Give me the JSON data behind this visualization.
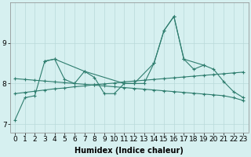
{
  "series": {
    "s1_x": [
      0,
      1,
      2,
      3,
      4,
      5,
      6,
      7,
      8,
      9,
      10,
      11,
      12,
      13,
      14,
      15,
      16,
      17,
      18,
      19,
      20,
      21,
      22,
      23
    ],
    "s1_y": [
      7.1,
      7.65,
      7.7,
      8.55,
      8.6,
      8.1,
      8.0,
      8.3,
      8.15,
      7.75,
      7.75,
      8.0,
      8.0,
      8.0,
      8.5,
      9.3,
      9.65,
      8.6,
      8.35,
      8.45,
      8.35,
      8.05,
      7.8,
      7.65
    ],
    "s2_x": [
      3,
      4,
      7,
      11,
      12,
      14,
      15,
      16,
      17,
      19
    ],
    "s2_y": [
      8.55,
      8.6,
      8.3,
      8.0,
      8.0,
      8.5,
      9.3,
      9.65,
      8.6,
      8.45
    ],
    "s3_x": [
      0,
      1,
      2,
      3,
      4,
      5,
      6,
      7,
      8,
      9,
      10,
      11,
      12,
      13,
      14,
      15,
      16,
      17,
      18,
      19,
      20,
      21,
      22,
      23
    ],
    "s3_y": [
      7.75,
      7.78,
      7.81,
      7.84,
      7.87,
      7.89,
      7.92,
      7.94,
      7.97,
      7.99,
      8.01,
      8.04,
      8.06,
      8.08,
      8.1,
      8.12,
      8.14,
      8.16,
      8.18,
      8.2,
      8.22,
      8.24,
      8.26,
      8.28
    ],
    "s4_x": [
      0,
      1,
      2,
      3,
      4,
      5,
      6,
      7,
      8,
      9,
      10,
      11,
      12,
      13,
      14,
      15,
      16,
      17,
      18,
      19,
      20,
      21,
      22,
      23
    ],
    "s4_y": [
      8.12,
      8.1,
      8.08,
      8.06,
      8.04,
      8.02,
      8.0,
      7.98,
      7.96,
      7.94,
      7.92,
      7.9,
      7.88,
      7.86,
      7.84,
      7.82,
      7.8,
      7.78,
      7.76,
      7.74,
      7.72,
      7.7,
      7.65,
      7.58
    ]
  },
  "line_color": "#2e7d6e",
  "bg_color": "#d6f0f0",
  "grid_color": "#b8dada",
  "xlabel": "Humidex (Indice chaleur)",
  "xlim": [
    -0.5,
    23.5
  ],
  "ylim": [
    6.8,
    10.0
  ],
  "yticks": [
    7,
    8,
    9
  ],
  "xticks": [
    0,
    1,
    2,
    3,
    4,
    5,
    6,
    7,
    8,
    9,
    10,
    11,
    12,
    13,
    14,
    15,
    16,
    17,
    18,
    19,
    20,
    21,
    22,
    23
  ],
  "xlabel_fontsize": 7,
  "tick_fontsize": 6.5
}
